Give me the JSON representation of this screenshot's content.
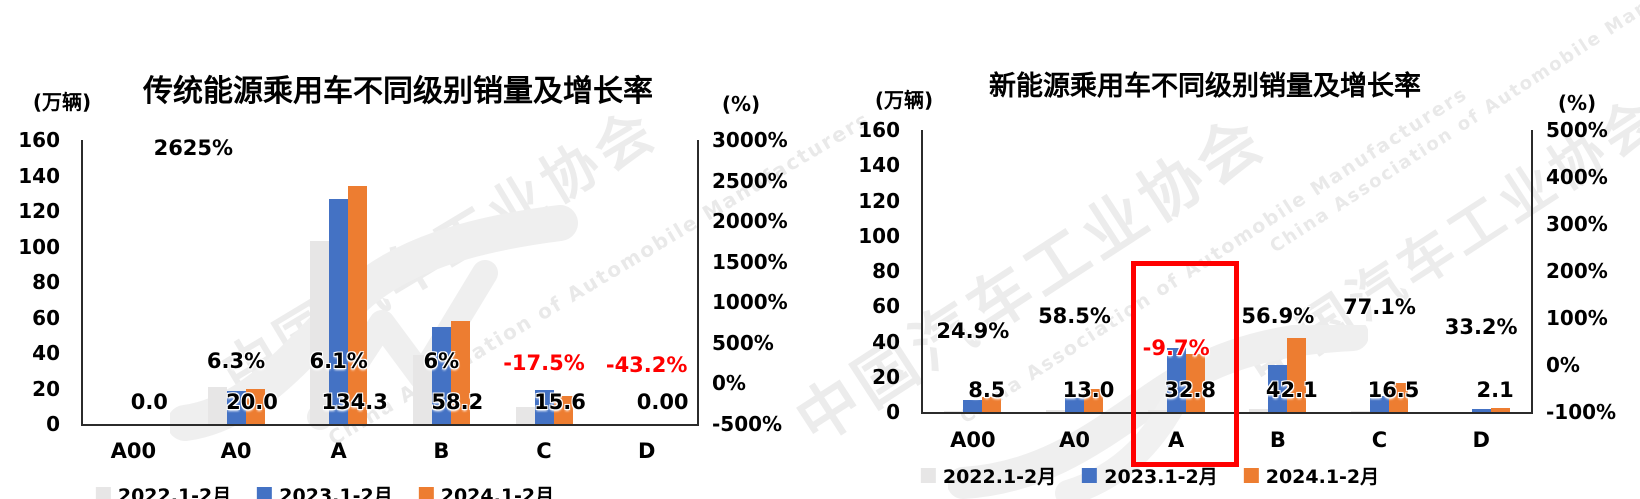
{
  "watermark": {
    "cn": "中国汽车工业协会",
    "en": "China Association of Automobile Manufacturers"
  },
  "colors": {
    "series_2022": "#E7E6E6",
    "series_2023": "#4472C4",
    "series_2024": "#ED7D31",
    "negative_label": "#FF0000",
    "positive_label": "#000000",
    "axis_line": "#2B2B2B",
    "highlight_box": "#FF0000",
    "watermark": "#ECECEC"
  },
  "chart_data": [
    {
      "type": "bar",
      "title": "传统能源乘用车不同级别销量及增长率",
      "left_axis": {
        "label": "(万辆)",
        "min": 0,
        "max": 160,
        "step": 20,
        "ticks": [
          "160",
          "140",
          "120",
          "100",
          "80",
          "60",
          "40",
          "20",
          "0"
        ]
      },
      "right_axis": {
        "label": "(%)",
        "min": -500,
        "max": 3000,
        "step": 500,
        "ticks": [
          "3000%",
          "2500%",
          "2000%",
          "1500%",
          "1000%",
          "500%",
          "0%",
          "-500%"
        ]
      },
      "categories": [
        "A00",
        "A0",
        "A",
        "B",
        "C",
        "D"
      ],
      "series": [
        {
          "name": "2022.1-2月",
          "color": "#E7E6E6",
          "values": [
            0,
            20.6,
            103,
            39,
            9.5,
            0
          ]
        },
        {
          "name": "2023.1-2月",
          "color": "#4472C4",
          "values": [
            0,
            18.8,
            126.6,
            54.9,
            18.9,
            0
          ]
        },
        {
          "name": "2024.1-2月",
          "color": "#ED7D31",
          "values": [
            0,
            20.0,
            134.3,
            58.2,
            15.6,
            0
          ]
        }
      ],
      "value_labels": [
        "0.0",
        "20.0",
        "134.3",
        "58.2",
        "15.6",
        "0.00"
      ],
      "growth_labels": [
        {
          "text": "2625%",
          "value": 2625
        },
        {
          "text": "6.3%",
          "value": 6.3
        },
        {
          "text": "6.1%",
          "value": 6.1
        },
        {
          "text": "6%",
          "value": 6
        },
        {
          "text": "-17.5%",
          "value": -17.5
        },
        {
          "text": "-43.2%",
          "value": -43.2
        }
      ],
      "legend_position": "bottom"
    },
    {
      "type": "bar",
      "title": "新能源乘用车不同级别销量及增长率",
      "left_axis": {
        "label": "(万辆)",
        "min": 0,
        "max": 160,
        "step": 20,
        "ticks": [
          "160",
          "140",
          "120",
          "100",
          "80",
          "60",
          "40",
          "20",
          "0"
        ]
      },
      "right_axis": {
        "label": "(%)",
        "min": -100,
        "max": 500,
        "step": 100,
        "ticks": [
          "500%",
          "400%",
          "300%",
          "200%",
          "100%",
          "0%",
          "-100%"
        ]
      },
      "categories": [
        "A00",
        "A0",
        "A",
        "B",
        "C",
        "D"
      ],
      "series": [
        {
          "name": "2022.1-2月",
          "color": "#E7E6E6",
          "values": [
            0.8,
            0.9,
            1.2,
            1.5,
            0.6,
            0.2
          ]
        },
        {
          "name": "2023.1-2月",
          "color": "#4472C4",
          "values": [
            6.8,
            8.2,
            36.3,
            26.8,
            9.3,
            1.6
          ]
        },
        {
          "name": "2024.1-2月",
          "color": "#ED7D31",
          "values": [
            8.5,
            13.0,
            32.8,
            42.1,
            16.5,
            2.1
          ]
        }
      ],
      "value_labels": [
        "8.5",
        "13.0",
        "32.8",
        "42.1",
        "16.5",
        "2.1"
      ],
      "growth_labels": [
        {
          "text": "24.9%",
          "value": 24.9
        },
        {
          "text": "58.5%",
          "value": 58.5
        },
        {
          "text": "-9.7%",
          "value": -9.7
        },
        {
          "text": "56.9%",
          "value": 56.9
        },
        {
          "text": "77.1%",
          "value": 77.1
        },
        {
          "text": "33.2%",
          "value": 33.2
        }
      ],
      "highlight": {
        "category": "A"
      },
      "legend_position": "bottom"
    }
  ]
}
